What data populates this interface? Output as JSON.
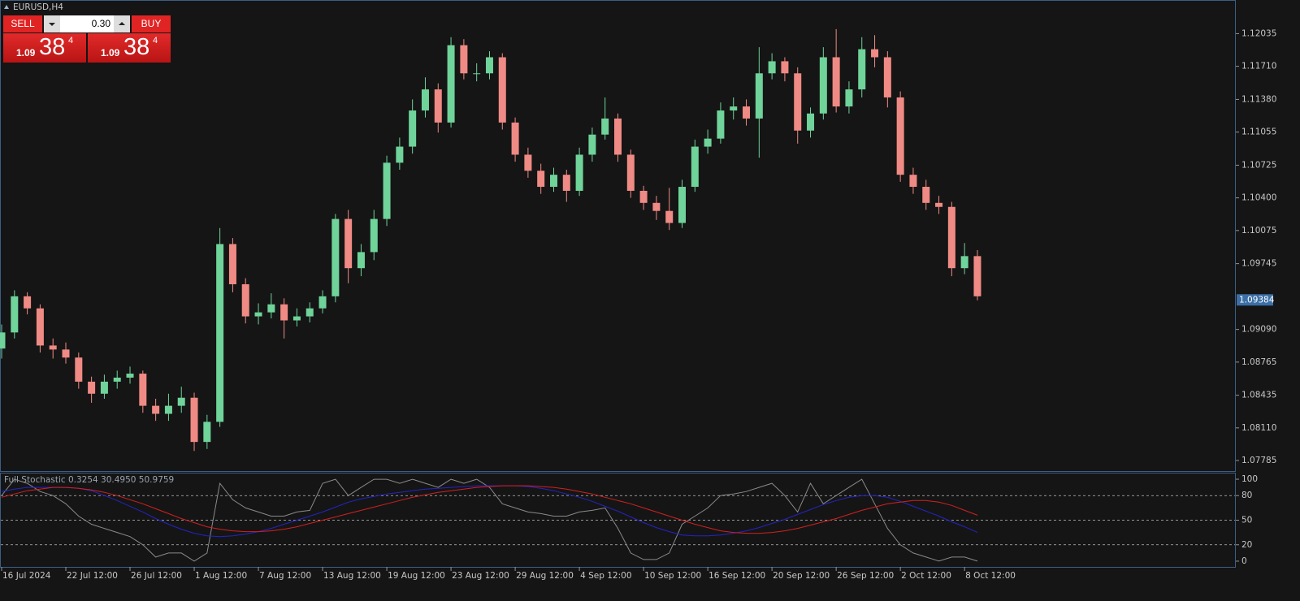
{
  "chart_data": [
    {
      "type": "candlestick",
      "title": "EURUSD,H4",
      "up_color": "#6fd39a",
      "down_color": "#f08a84",
      "open": [
        1.089,
        1.0906,
        1.0942,
        1.093,
        1.0893,
        1.0889,
        1.0881,
        1.0857,
        1.0845,
        1.0857,
        1.0861,
        1.0865,
        1.0833,
        1.0825,
        1.0833,
        1.0841,
        1.0797,
        1.0817,
        1.0994,
        1.0954,
        1.0922,
        1.0926,
        1.0934,
        1.0918,
        1.0922,
        1.093,
        1.0942,
        1.1019,
        1.097,
        1.0986,
        1.1019,
        1.1075,
        1.1091,
        1.1127,
        1.1148,
        1.1115,
        1.1192,
        1.1164,
        1.1164,
        1.118,
        1.1115,
        1.1083,
        1.1067,
        1.1051,
        1.1063,
        1.1047,
        1.1083,
        1.1103,
        1.1119,
        1.1083,
        1.1047,
        1.1035,
        1.1027,
        1.1015,
        1.1051,
        1.1091,
        1.1099,
        1.1127,
        1.1131,
        1.1119,
        1.1164,
        1.1176,
        1.1164,
        1.1107,
        1.1124,
        1.118,
        1.1131,
        1.1148,
        1.1188,
        1.118,
        1.114,
        1.1063,
        1.1051,
        1.1035,
        1.1031,
        1.097,
        1.0982
      ],
      "high": [
        1.0914,
        1.0948,
        1.0946,
        1.0934,
        1.09,
        1.0896,
        1.0886,
        1.0862,
        1.0864,
        1.0868,
        1.0872,
        1.0868,
        1.084,
        1.0845,
        1.0852,
        1.0846,
        1.0824,
        1.101,
        1.1,
        1.096,
        1.0935,
        1.0945,
        1.094,
        1.093,
        1.0936,
        1.0948,
        1.1024,
        1.1028,
        1.0994,
        1.1028,
        1.1082,
        1.11,
        1.1138,
        1.116,
        1.1154,
        1.12,
        1.1198,
        1.1174,
        1.1186,
        1.1184,
        1.112,
        1.109,
        1.1074,
        1.107,
        1.1068,
        1.109,
        1.111,
        1.114,
        1.1124,
        1.1088,
        1.1052,
        1.1042,
        1.105,
        1.1058,
        1.1098,
        1.1108,
        1.1135,
        1.114,
        1.1138,
        1.119,
        1.1184,
        1.118,
        1.117,
        1.113,
        1.119,
        1.1208,
        1.1156,
        1.12,
        1.1202,
        1.1186,
        1.1146,
        1.107,
        1.1058,
        1.1042,
        1.1036,
        1.0995,
        1.0988
      ],
      "low": [
        1.088,
        1.09,
        1.0924,
        1.0886,
        1.088,
        1.0875,
        1.085,
        1.0836,
        1.084,
        1.085,
        1.0855,
        1.0826,
        1.0818,
        1.0818,
        1.0826,
        1.0788,
        1.079,
        1.0812,
        1.0946,
        1.0915,
        1.0914,
        1.092,
        1.09,
        1.0912,
        1.0916,
        1.0925,
        1.0936,
        1.0955,
        1.0962,
        1.0978,
        1.1012,
        1.1068,
        1.1084,
        1.112,
        1.1105,
        1.111,
        1.1158,
        1.1156,
        1.1158,
        1.1108,
        1.1076,
        1.106,
        1.1044,
        1.1046,
        1.1036,
        1.1042,
        1.1076,
        1.1098,
        1.1076,
        1.104,
        1.1028,
        1.1018,
        1.1008,
        1.101,
        1.1046,
        1.1084,
        1.1094,
        1.1118,
        1.1112,
        1.108,
        1.1158,
        1.1156,
        1.1094,
        1.11,
        1.1118,
        1.1125,
        1.1124,
        1.114,
        1.117,
        1.113,
        1.1056,
        1.1044,
        1.1028,
        1.1024,
        1.0962,
        1.0964,
        1.0938
      ],
      "close": [
        1.0906,
        1.0942,
        1.093,
        1.0893,
        1.0889,
        1.0881,
        1.0857,
        1.0845,
        1.0857,
        1.0861,
        1.0865,
        1.0833,
        1.0825,
        1.0833,
        1.0841,
        1.0797,
        1.0817,
        1.0994,
        1.0954,
        1.0922,
        1.0926,
        1.0934,
        1.0918,
        1.0922,
        1.093,
        1.0942,
        1.1019,
        1.097,
        1.0986,
        1.1019,
        1.1075,
        1.1091,
        1.1127,
        1.1148,
        1.1115,
        1.1192,
        1.1164,
        1.1164,
        1.118,
        1.1115,
        1.1083,
        1.1067,
        1.1051,
        1.1063,
        1.1047,
        1.1083,
        1.1103,
        1.1119,
        1.1083,
        1.1047,
        1.1035,
        1.1027,
        1.1015,
        1.1051,
        1.1091,
        1.1099,
        1.1127,
        1.1131,
        1.1119,
        1.1164,
        1.1176,
        1.1164,
        1.1107,
        1.1124,
        1.118,
        1.1131,
        1.1148,
        1.1188,
        1.118,
        1.114,
        1.1063,
        1.1051,
        1.1035,
        1.1031,
        1.097,
        1.0982,
        1.0942
      ],
      "last_price": 1.09384,
      "ylim": [
        1.0768,
        1.1237
      ],
      "yticks": [
        1.12035,
        {
          "value": 1.1171,
          "label": "1.11710"
        },
        {
          "value": 1.1138,
          "label": "1.11380"
        },
        1.11055,
        1.10725,
        {
          "value": 1.104,
          "label": "1.10400"
        },
        1.10075,
        1.09745,
        {
          "value": 1.0909,
          "label": "1.09090"
        },
        1.08765,
        1.08435,
        {
          "value": 1.0811,
          "label": "1.08110"
        },
        1.07785
      ],
      "xlim": [
        0,
        96
      ],
      "xticks": [
        {
          "value": 0,
          "label": "16 Jul 2024"
        },
        {
          "value": 5,
          "label": "22 Jul 12:00"
        },
        {
          "value": 10,
          "label": "26 Jul 12:00"
        },
        {
          "value": 15,
          "label": "1 Aug 12:00"
        },
        {
          "value": 20,
          "label": "7 Aug 12:00"
        },
        {
          "value": 25,
          "label": "13 Aug 12:00"
        },
        {
          "value": 30,
          "label": "19 Aug 12:00"
        },
        {
          "value": 35,
          "label": "23 Aug 12:00"
        },
        {
          "value": 40,
          "label": "29 Aug 12:00"
        },
        {
          "value": 45,
          "label": "4 Sep 12:00"
        },
        {
          "value": 50,
          "label": "10 Sep 12:00"
        },
        {
          "value": 55,
          "label": "16 Sep 12:00"
        },
        {
          "value": 60,
          "label": "20 Sep 12:00"
        },
        {
          "value": 65,
          "label": "26 Sep 12:00"
        },
        {
          "value": 70,
          "label": "2 Oct 12:00"
        },
        {
          "value": 75,
          "label": "8 Oct 12:00"
        }
      ]
    },
    {
      "type": "line",
      "title": "Full Stochastic 0.3254 30.4950 50.9759",
      "series": [
        {
          "color": "#8a8a8a",
          "values": [
            80,
            100,
            95,
            85,
            80,
            70,
            55,
            45,
            40,
            35,
            30,
            20,
            5,
            10,
            10,
            0,
            10,
            95,
            75,
            65,
            60,
            55,
            55,
            60,
            62,
            95,
            100,
            80,
            90,
            100,
            100,
            95,
            100,
            95,
            90,
            100,
            95,
            100,
            90,
            70,
            65,
            60,
            58,
            55,
            55,
            60,
            62,
            65,
            40,
            10,
            2,
            2,
            10,
            45,
            55,
            65,
            80,
            82,
            85,
            90,
            95,
            80,
            60,
            95,
            70,
            80,
            90,
            100,
            70,
            40,
            20,
            10,
            5,
            0,
            5,
            5,
            0
          ]
        },
        {
          "color": "#2424c8",
          "values": [
            85,
            88,
            90,
            90,
            90,
            90,
            89,
            86,
            80,
            74,
            67,
            60,
            52,
            45,
            39,
            34,
            31,
            30,
            31,
            33,
            36,
            40,
            45,
            50,
            55,
            60,
            66,
            72,
            76,
            79,
            82,
            84,
            86,
            88,
            89,
            90,
            91,
            92,
            92,
            92,
            92,
            91,
            89,
            86,
            82,
            78,
            73,
            67,
            61,
            54,
            47,
            41,
            36,
            32,
            31,
            31,
            32,
            34,
            37,
            41,
            46,
            51,
            57,
            63,
            69,
            74,
            78,
            80,
            80,
            78,
            73,
            67,
            61,
            55,
            48,
            42,
            35
          ]
        },
        {
          "color": "#d42020",
          "values": [
            78,
            82,
            86,
            88,
            90,
            90,
            89,
            87,
            84,
            80,
            75,
            70,
            64,
            58,
            52,
            47,
            42,
            39,
            37,
            36,
            36,
            37,
            39,
            42,
            46,
            50,
            54,
            58,
            62,
            66,
            70,
            74,
            78,
            81,
            84,
            86,
            88,
            90,
            91,
            92,
            92,
            92,
            91,
            90,
            88,
            85,
            82,
            78,
            74,
            70,
            65,
            60,
            55,
            50,
            45,
            41,
            37,
            35,
            34,
            34,
            35,
            37,
            40,
            44,
            48,
            52,
            57,
            62,
            66,
            70,
            72,
            74,
            74,
            72,
            68,
            62,
            56
          ]
        }
      ],
      "ylim": [
        -7,
        107
      ],
      "yticks": [
        100,
        80,
        50,
        20,
        0
      ],
      "levels": [
        80,
        50,
        20
      ]
    }
  ],
  "trade_panel": {
    "sell_label": "SELL",
    "lot": "0.30",
    "buy_label": "BUY",
    "bid": {
      "prefix": "1.09",
      "pips": "38",
      "point": "4"
    },
    "ask": {
      "prefix": "1.09",
      "pips": "38",
      "point": "4"
    }
  }
}
